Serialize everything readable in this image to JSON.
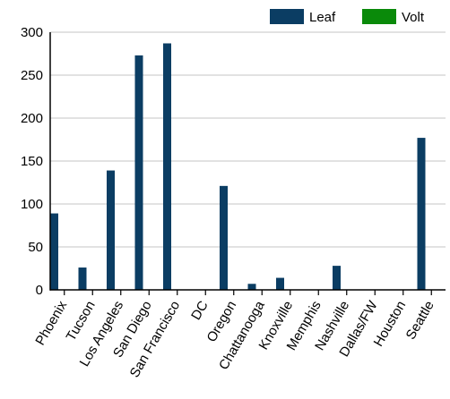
{
  "chart_data": {
    "type": "bar",
    "title": "",
    "xlabel": "",
    "ylabel": "",
    "categories": [
      "Phoenix",
      "Tucson",
      "Los Angeles",
      "San Diego",
      "San Francisco",
      "DC",
      "Oregon",
      "Chattanooga",
      "Knoxville",
      "Memphis",
      "Nashville",
      "Dallas/FW",
      "Houston",
      "Seattle"
    ],
    "series": [
      {
        "name": "Leaf",
        "color": "#0b3d63",
        "values": [
          89,
          26,
          139,
          273,
          287,
          0,
          121,
          7,
          14,
          0,
          28,
          0,
          0,
          177
        ]
      },
      {
        "name": "Volt",
        "color": "#0a8a0a",
        "values": [
          0,
          0,
          0,
          0,
          0,
          0,
          0,
          0,
          0,
          0,
          0,
          0,
          0,
          0
        ]
      }
    ],
    "ylim": [
      0,
      300
    ],
    "yticks": [
      0,
      50,
      100,
      150,
      200,
      250,
      300
    ],
    "grid": true,
    "legend_position": "top-right"
  }
}
